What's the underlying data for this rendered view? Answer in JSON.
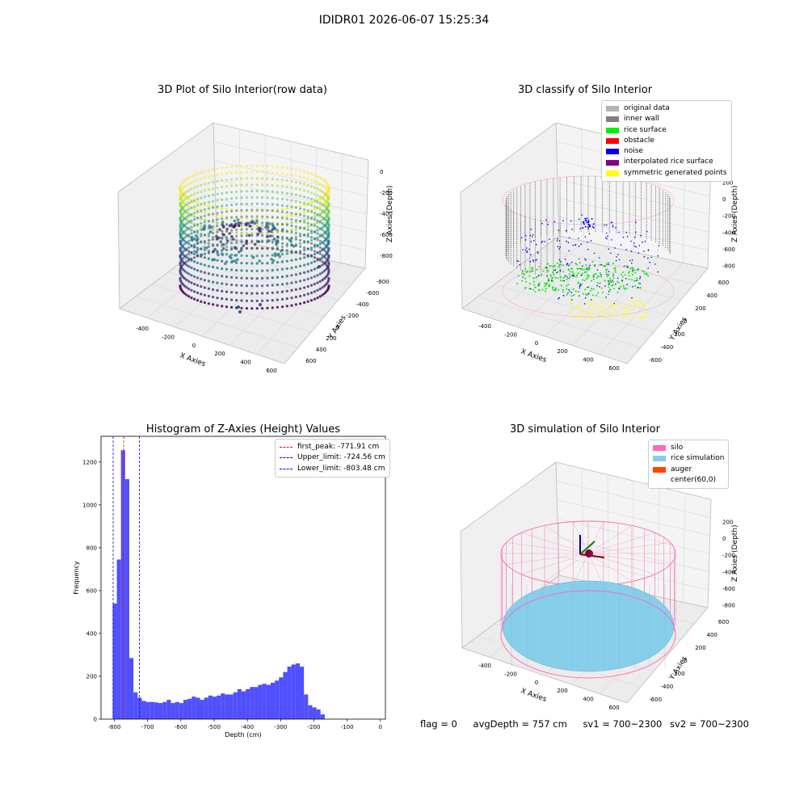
{
  "figure": {
    "title": "IDIDR01 2026-06-07 15:25:34"
  },
  "colors": {
    "original": "#b3b3b3",
    "inner_wall": "#808080",
    "rice_surface": "#00ee00",
    "obstacle": "#ff0000",
    "noise": "#0000ee",
    "interpolated": "#800080",
    "symmetric": "#ffff00",
    "silo": "#ff69b4",
    "rice_sim": "#87ceeb",
    "auger": "#ff4500",
    "hist_bar": "#5050ff",
    "peak_line": "#ff0000",
    "limit_line": "#0000ff"
  },
  "chart_data": [
    {
      "type": "scatter",
      "title": "3D Plot of Silo Interior(row data)",
      "xlabel": "X Axies",
      "ylabel": "Y Axies",
      "zlabel": "Z Axies (Depth)",
      "x_ticks": [
        "-400",
        "-200",
        "0",
        "200",
        "400",
        "600"
      ],
      "y_ticks": [
        "-800",
        "-600",
        "-400",
        "-200",
        "0",
        "200",
        "400",
        "600"
      ],
      "z_ticks": [
        "0",
        "-200",
        "-400",
        "-600",
        "-800"
      ],
      "colormap": "viridis"
    },
    {
      "type": "scatter",
      "title": "3D classify of Silo Interior",
      "xlabel": "X Axies",
      "ylabel": "Y Axies",
      "zlabel": "Z Axies (Depth)",
      "x_ticks": [
        "-400",
        "-200",
        "0",
        "200",
        "400",
        "600"
      ],
      "y_ticks": [
        "-600",
        "-400",
        "-200",
        "0",
        "200",
        "400",
        "600"
      ],
      "z_ticks": [
        "200",
        "0",
        "-200",
        "-400",
        "-600",
        "-800"
      ],
      "legend": [
        "original data",
        "inner wall",
        "rice surface",
        "obstacle",
        "noise",
        "interpolated rice surface",
        "symmetric generated points"
      ],
      "legend_position": "upper-right"
    },
    {
      "type": "bar",
      "title": "Histogram of Z-Axies (Height) Values",
      "xlabel": "Depth (cm)",
      "ylabel": "Frequency",
      "xlim": [
        -840,
        15
      ],
      "ylim": [
        0,
        1320
      ],
      "x_ticks": [
        -800,
        -700,
        -600,
        -500,
        -400,
        -300,
        -200,
        -100,
        0
      ],
      "y_ticks": [
        0,
        200,
        400,
        600,
        800,
        1000,
        1200
      ],
      "bin_start": -805,
      "bin_width": 12.5,
      "values": [
        540,
        745,
        1255,
        1120,
        285,
        125,
        100,
        85,
        80,
        80,
        78,
        75,
        80,
        90,
        75,
        80,
        75,
        90,
        95,
        105,
        100,
        90,
        100,
        110,
        105,
        110,
        120,
        115,
        115,
        125,
        140,
        130,
        140,
        150,
        150,
        160,
        165,
        160,
        170,
        180,
        195,
        220,
        245,
        255,
        260,
        245,
        115,
        65,
        55,
        45,
        22
      ],
      "vlines": [
        {
          "label": "first_peak: -771.91 cm",
          "value": -771.91,
          "color": "#ff0000"
        },
        {
          "label": "Upper_limit: -724.56 cm",
          "value": -724.56,
          "color": "#0000ff"
        },
        {
          "label": "Lower_limit: -803.48 cm",
          "value": -803.48,
          "color": "#0000ff"
        }
      ],
      "legend_position": "upper-right"
    },
    {
      "type": "scatter",
      "title": "3D simulation of Silo Interior",
      "xlabel": "X Axies",
      "ylabel": "Y Axies",
      "zlabel": "Z Axies (Depth)",
      "x_ticks": [
        "-400",
        "-200",
        "0",
        "200",
        "400",
        "600"
      ],
      "y_ticks": [
        "-600",
        "-400",
        "-200",
        "0",
        "200",
        "400",
        "600"
      ],
      "z_ticks": [
        "200",
        "0",
        "-200",
        "-400",
        "-600",
        "-800"
      ],
      "legend": [
        "silo",
        "rice simulation",
        "auger",
        "center(60,0)"
      ],
      "legend_position": "upper-right"
    }
  ],
  "footer": {
    "flag": "flag = 0",
    "avg_depth": "avgDepth = 757 cm",
    "sv1": "sv1 = 700~2300",
    "sv2": "sv2 = 700~2300"
  }
}
